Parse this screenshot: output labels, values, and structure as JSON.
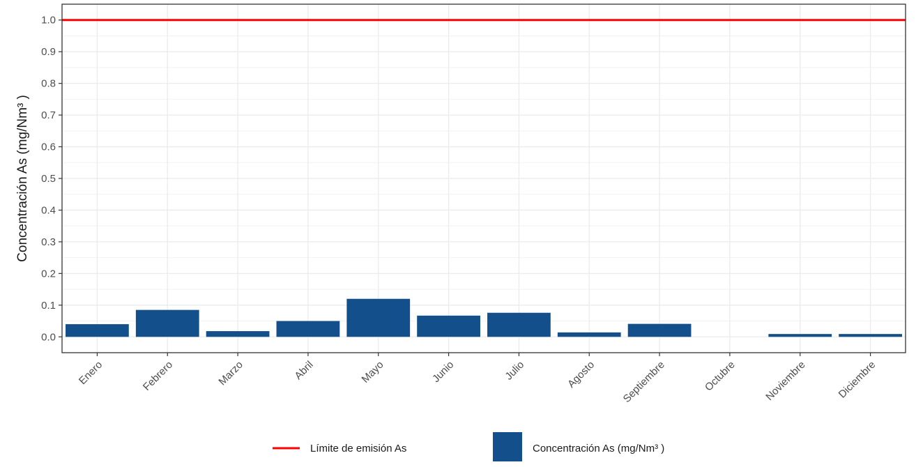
{
  "chart_data": {
    "type": "bar",
    "categories": [
      "Enero",
      "Febrero",
      "Marzo",
      "Abril",
      "Mayo",
      "Junio",
      "Julio",
      "Agosto",
      "Septiembre",
      "Octubre",
      "Noviembre",
      "Diciembre"
    ],
    "series": [
      {
        "name": "Concentración As (mg/Nm³ )",
        "values": [
          0.04,
          0.085,
          0.018,
          0.05,
          0.12,
          0.067,
          0.076,
          0.014,
          0.041,
          0.0,
          0.009,
          0.009
        ],
        "color": "#134f8b"
      }
    ],
    "reference_lines": [
      {
        "name": "Límite de emisión As",
        "value": 1.0,
        "color": "#ff0000"
      }
    ],
    "title": "",
    "xlabel": "",
    "ylabel": "Concentración As (mg/Nm³ )",
    "ylim": [
      -0.05,
      1.05
    ],
    "yticks": [
      "0.0",
      "0.1",
      "0.2",
      "0.3",
      "0.4",
      "0.5",
      "0.6",
      "0.7",
      "0.8",
      "0.9",
      "1.0"
    ],
    "grid": true,
    "legend_position": "bottom",
    "legend": {
      "line_label": "Límite de emisión As",
      "bar_label": "Concentración As (mg/Nm³ )"
    }
  }
}
